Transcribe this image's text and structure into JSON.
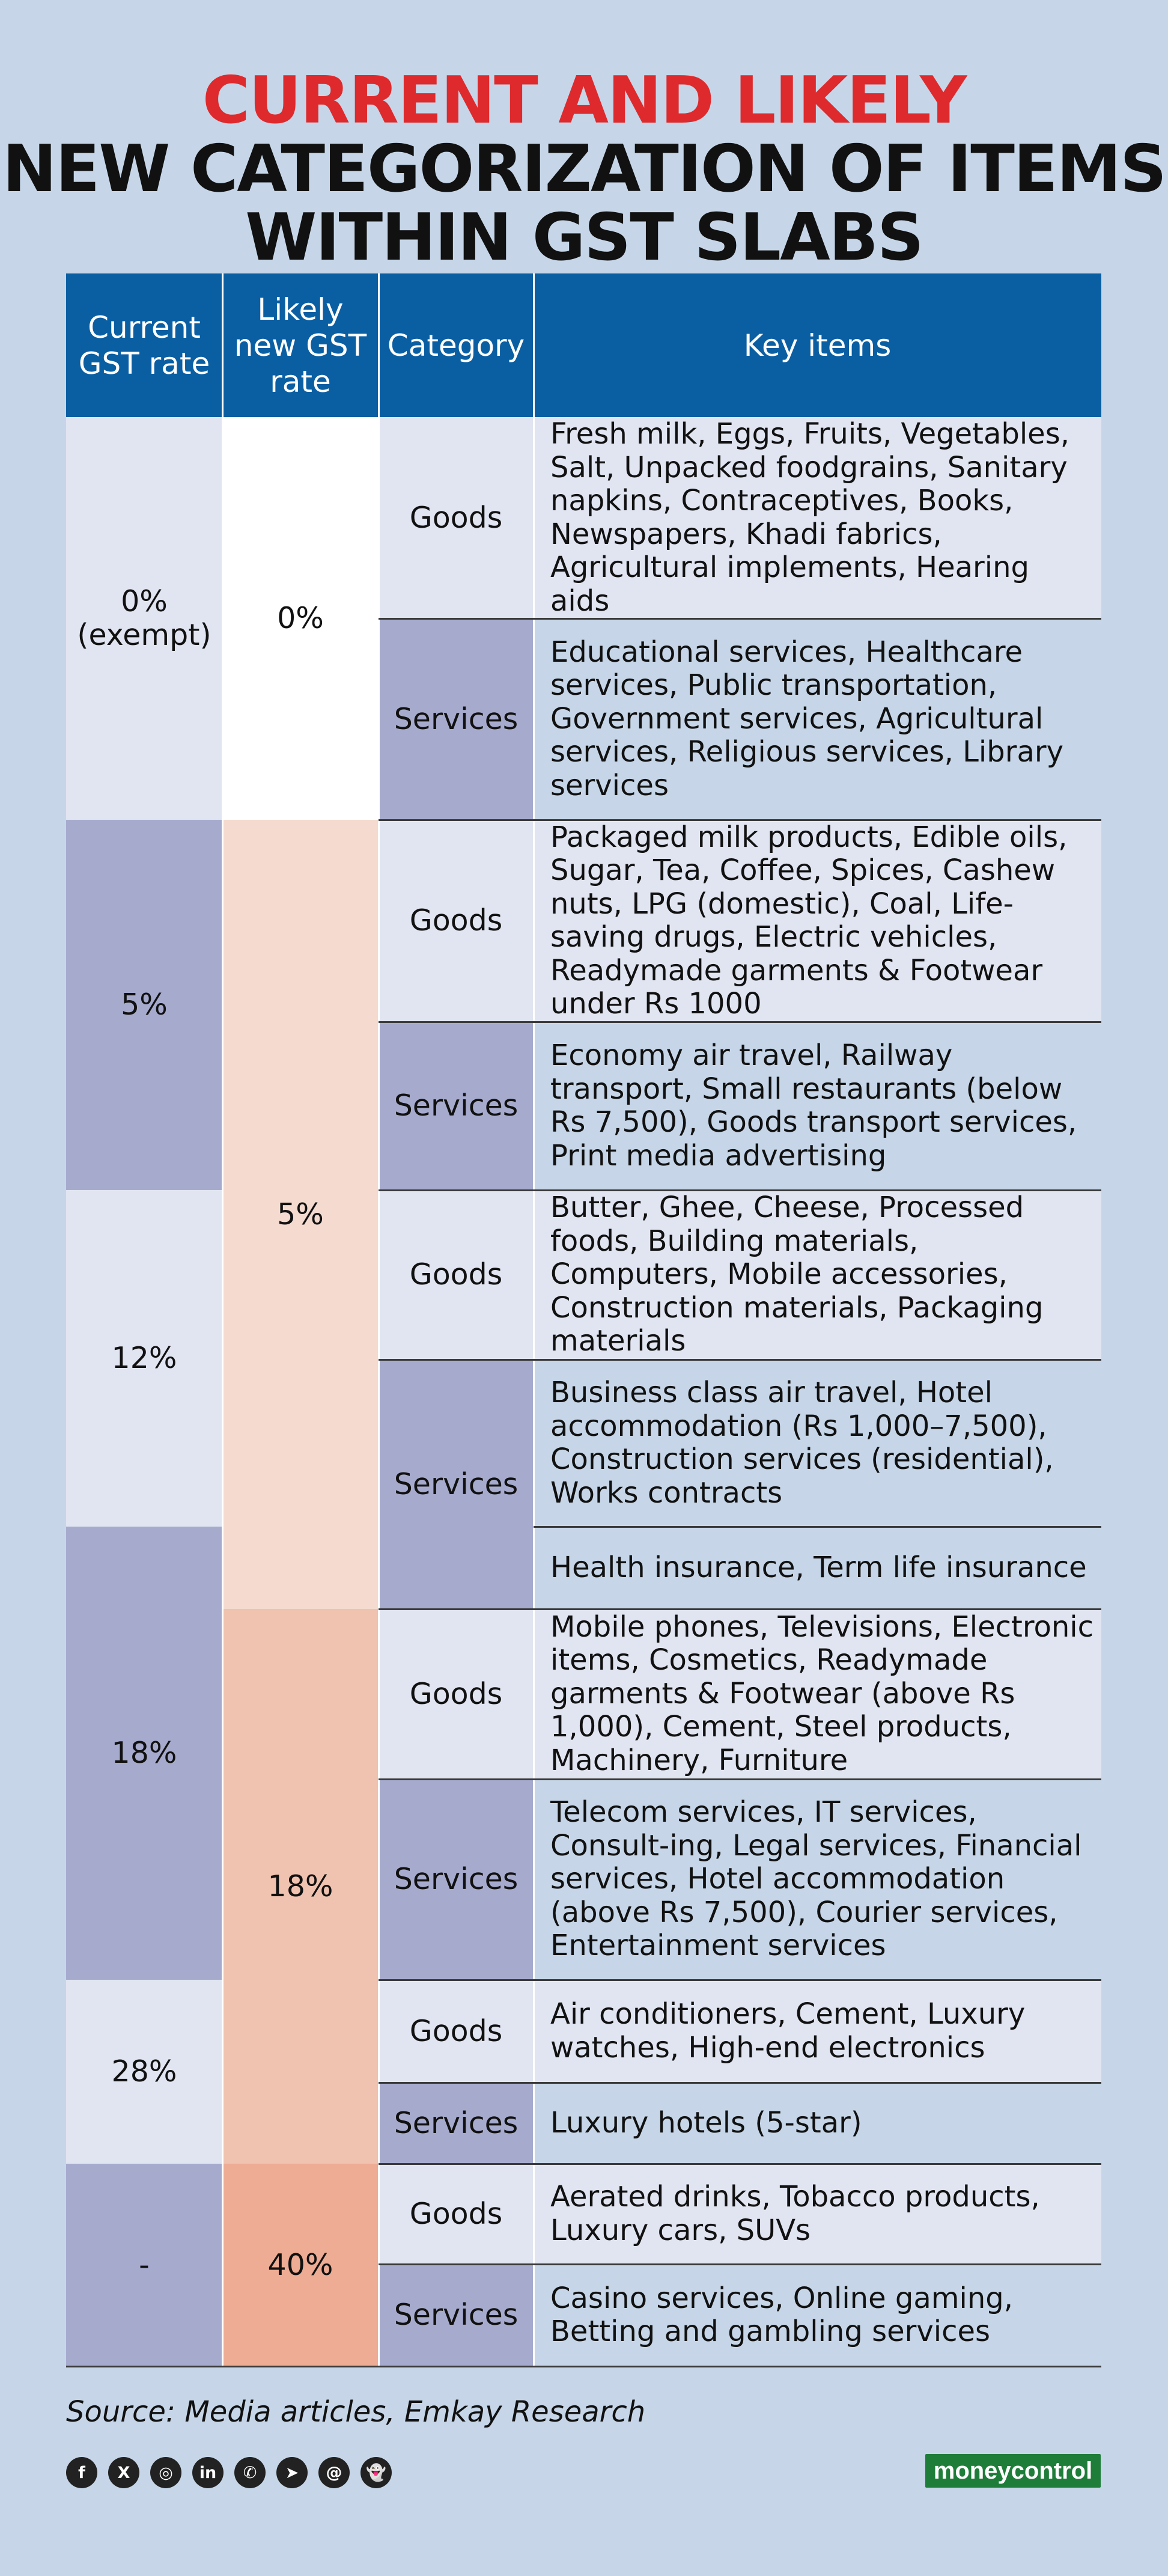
{
  "title": {
    "line1": "CURRENT AND LIKELY",
    "line2": "NEW CATEGORIZATION OF ITEMS",
    "line3": "WITHIN GST SLABS"
  },
  "table": {
    "headers": {
      "current": "Current GST rate",
      "likely": "Likely new GST rate",
      "category": "Category",
      "items": "Key items"
    },
    "current_rates": [
      "0%\n(exempt)",
      "5%",
      "12%",
      "18%",
      "28%",
      "-"
    ],
    "likely_rates": [
      "0%",
      "5%",
      "18%",
      "40%"
    ],
    "rows": [
      {
        "category": "Goods",
        "items": "Fresh milk, Eggs, Fruits, Vegetables, Salt, Unpacked foodgrains, Sanitary napkins, Contraceptives, Books, Newspapers, Khadi fabrics, Agricultural implements, Hearing aids"
      },
      {
        "category": "Services",
        "items": "Educational services, Healthcare services, Public transportation, Government services, Agricultural services, Religious services, Library services"
      },
      {
        "category": "Goods",
        "items": "Packaged milk products, Edible oils, Sugar, Tea, Coffee, Spices, Cashew nuts, LPG (domestic), Coal, Life-saving drugs, Electric vehicles, Readymade garments & Footwear under Rs 1000"
      },
      {
        "category": "Services",
        "items": "Economy air travel, Railway transport, Small restaurants (below Rs 7,500), Goods transport services, Print media advertising"
      },
      {
        "category": "Goods",
        "items": "Butter, Ghee, Cheese, Processed foods, Building materials, Computers, Mobile accessories, Construction materials, Packaging materials"
      },
      {
        "category": "Services",
        "items": "Business class air travel, Hotel accommodation (Rs 1,000–7,500), Construction services (residential), Works contracts"
      },
      {
        "category": "",
        "items": "Health insurance, Term life insurance"
      },
      {
        "category": "Goods",
        "items": "Mobile phones, Televisions, Electronic items, Cosmetics, Readymade garments & Footwear (above Rs 1,000), Cement, Steel products, Machinery, Furniture"
      },
      {
        "category": "Services",
        "items": "Telecom services, IT services, Consult-ing, Legal services, Financial services, Hotel accommodation (above Rs 7,500), Courier services, Entertainment services"
      },
      {
        "category": "Goods",
        "items": "Air conditioners, Cement, Luxury watches, High-end electronics"
      },
      {
        "category": "Services",
        "items": "Luxury hotels (5-star)"
      },
      {
        "category": "Goods",
        "items": "Aerated drinks, Tobacco products, Luxury cars, SUVs"
      },
      {
        "category": "Services",
        "items": "Casino services, Online gaming, Betting and gambling services"
      }
    ]
  },
  "source": "Source: Media articles, Emkay Research",
  "social_icons": [
    "facebook-icon",
    "x-icon",
    "instagram-icon",
    "linkedin-icon",
    "whatsapp-icon",
    "telegram-icon",
    "threads-icon",
    "snapchat-icon"
  ],
  "social_glyphs": [
    "f",
    "X",
    "◎",
    "in",
    "✆",
    "➤",
    "@",
    "👻"
  ],
  "brand": "moneycontrol",
  "colors": {
    "background": "#c6d6e8",
    "header": "#0a5fa3",
    "title_red": "#de2a2d",
    "light": "#e1e5f1",
    "blue_purple": "#a6abce",
    "peach": "#f5dacf",
    "salmon": "#f0c2b0",
    "coral": "#edac93"
  }
}
